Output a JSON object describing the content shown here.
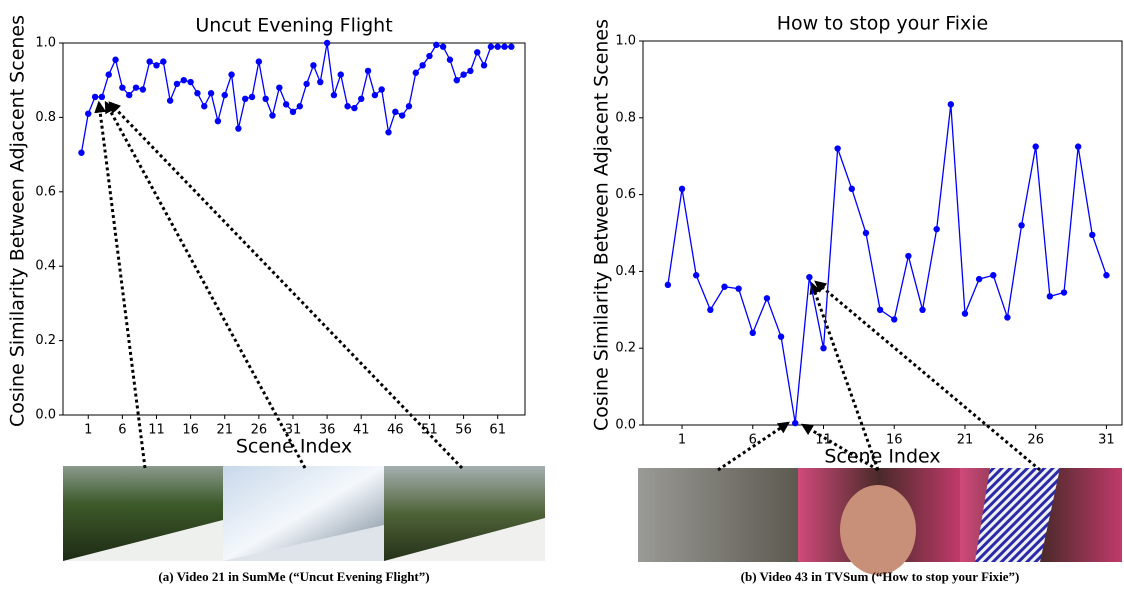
{
  "chart_data": [
    {
      "type": "line",
      "title": "Uncut Evening Flight",
      "xlabel": "Scene Index",
      "ylabel": "Cosine Similarity Between Adjacent Scenes",
      "caption": "(a) Video 21 in SumMe (“Uncut Evening Flight”)",
      "color": "#0000ff",
      "x": [
        0,
        1,
        2,
        3,
        4,
        5,
        6,
        7,
        8,
        9,
        10,
        11,
        12,
        13,
        14,
        15,
        16,
        17,
        18,
        19,
        20,
        21,
        22,
        23,
        24,
        25,
        26,
        27,
        28,
        29,
        30,
        31,
        32,
        33,
        34,
        35,
        36,
        37,
        38,
        39,
        40,
        41,
        42,
        43,
        44,
        45,
        46,
        47,
        48,
        49,
        50,
        51,
        52,
        53,
        54,
        55,
        56,
        57,
        58,
        59,
        60,
        61,
        62,
        63
      ],
      "values": [
        0.705,
        0.81,
        0.855,
        0.855,
        0.915,
        0.955,
        0.88,
        0.86,
        0.88,
        0.875,
        0.95,
        0.94,
        0.95,
        0.845,
        0.89,
        0.9,
        0.895,
        0.865,
        0.83,
        0.865,
        0.79,
        0.86,
        0.915,
        0.77,
        0.85,
        0.855,
        0.95,
        0.85,
        0.805,
        0.88,
        0.835,
        0.815,
        0.83,
        0.89,
        0.94,
        0.895,
        1.0,
        0.86,
        0.915,
        0.83,
        0.825,
        0.85,
        0.925,
        0.86,
        0.875,
        0.76,
        0.815,
        0.805,
        0.83,
        0.92,
        0.94,
        0.965,
        0.995,
        0.99,
        0.955,
        0.9,
        0.915,
        0.925,
        0.975,
        0.94,
        0.99,
        0.99,
        0.99,
        0.99
      ],
      "xlim": [
        -2.7,
        65
      ],
      "xticks": [
        1,
        6,
        11,
        16,
        21,
        26,
        31,
        36,
        41,
        46,
        51,
        56,
        61
      ],
      "ylim": [
        0,
        1
      ],
      "yticks": [
        {
          "value": 0,
          "label": "0.0"
        },
        {
          "value": 0.2,
          "label": "0.2"
        },
        {
          "value": 0.4,
          "label": "0.4"
        },
        {
          "value": 0.6,
          "label": "0.6"
        },
        {
          "value": 0.8,
          "label": "0.8"
        },
        {
          "value": 1,
          "label": "1.0"
        }
      ]
    },
    {
      "type": "line",
      "title": "How to stop your Fixie",
      "xlabel": "Scene Index",
      "ylabel": "Cosine Similarity Between Adjacent Scenes",
      "caption": "(b) Video 43 in TVSum (“How to stop your Fixie”)",
      "color": "#0000ff",
      "x": [
        0,
        1,
        2,
        3,
        4,
        5,
        6,
        7,
        8,
        9,
        10,
        11,
        12,
        13,
        14,
        15,
        16,
        17,
        18,
        19,
        20,
        21,
        22,
        23,
        24,
        25,
        26,
        27,
        28,
        29,
        30,
        31
      ],
      "values": [
        0.365,
        0.615,
        0.39,
        0.3,
        0.36,
        0.355,
        0.24,
        0.33,
        0.23,
        0.005,
        0.385,
        0.2,
        0.72,
        0.615,
        0.5,
        0.3,
        0.275,
        0.44,
        0.3,
        0.51,
        0.835,
        0.29,
        0.38,
        0.39,
        0.28,
        0.52,
        0.725,
        0.335,
        0.345,
        0.725,
        0.495,
        0.39
      ],
      "xlim": [
        -1.76,
        32.1
      ],
      "xticks": [
        1,
        6,
        11,
        16,
        21,
        26,
        31
      ],
      "ylim": [
        0,
        1
      ],
      "yticks": [
        {
          "value": 0,
          "label": "0.0"
        },
        {
          "value": 0.2,
          "label": "0.2"
        },
        {
          "value": 0.4,
          "label": "0.4"
        },
        {
          "value": 0.6,
          "label": "0.6"
        },
        {
          "value": 0.8,
          "label": "0.8"
        },
        {
          "value": 1,
          "label": "1.0"
        }
      ]
    }
  ]
}
